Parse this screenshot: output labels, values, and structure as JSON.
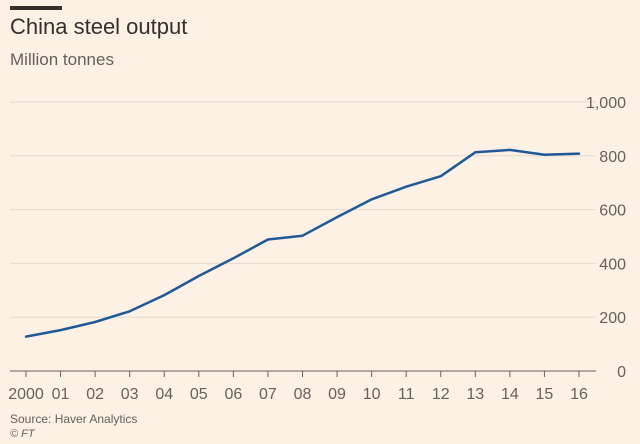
{
  "title": "China steel output",
  "subtitle": "Million tonnes",
  "source": "Source: Haver Analytics",
  "credit": "© FT",
  "colors": {
    "background": "#fdf0e5",
    "line": "#1f5a96",
    "grid": "#e6d9ce",
    "text": "#66605c"
  },
  "chart_data": {
    "type": "line",
    "title": "China steel output",
    "subtitle": "Million tonnes",
    "xlabel": "",
    "ylabel": "",
    "x": [
      2000,
      2001,
      2002,
      2003,
      2004,
      2005,
      2006,
      2007,
      2008,
      2009,
      2010,
      2011,
      2012,
      2013,
      2014,
      2015,
      2016
    ],
    "x_tick_labels": [
      "2000",
      "01",
      "02",
      "03",
      "04",
      "05",
      "06",
      "07",
      "08",
      "09",
      "10",
      "11",
      "12",
      "13",
      "14",
      "15",
      "16"
    ],
    "y_ticks": [
      0,
      200,
      400,
      600,
      800,
      1000
    ],
    "y_tick_labels": [
      "0",
      "200",
      "400",
      "600",
      "800",
      "1,000"
    ],
    "ylim": [
      0,
      1000
    ],
    "xlim": [
      2000,
      2016
    ],
    "y_axis_position": "right",
    "grid": true,
    "series": [
      {
        "values": [
          128,
          152,
          182,
          222,
          282,
          353,
          419,
          489,
          503,
          572,
          638,
          685,
          724,
          813,
          822,
          804,
          808
        ]
      }
    ]
  }
}
